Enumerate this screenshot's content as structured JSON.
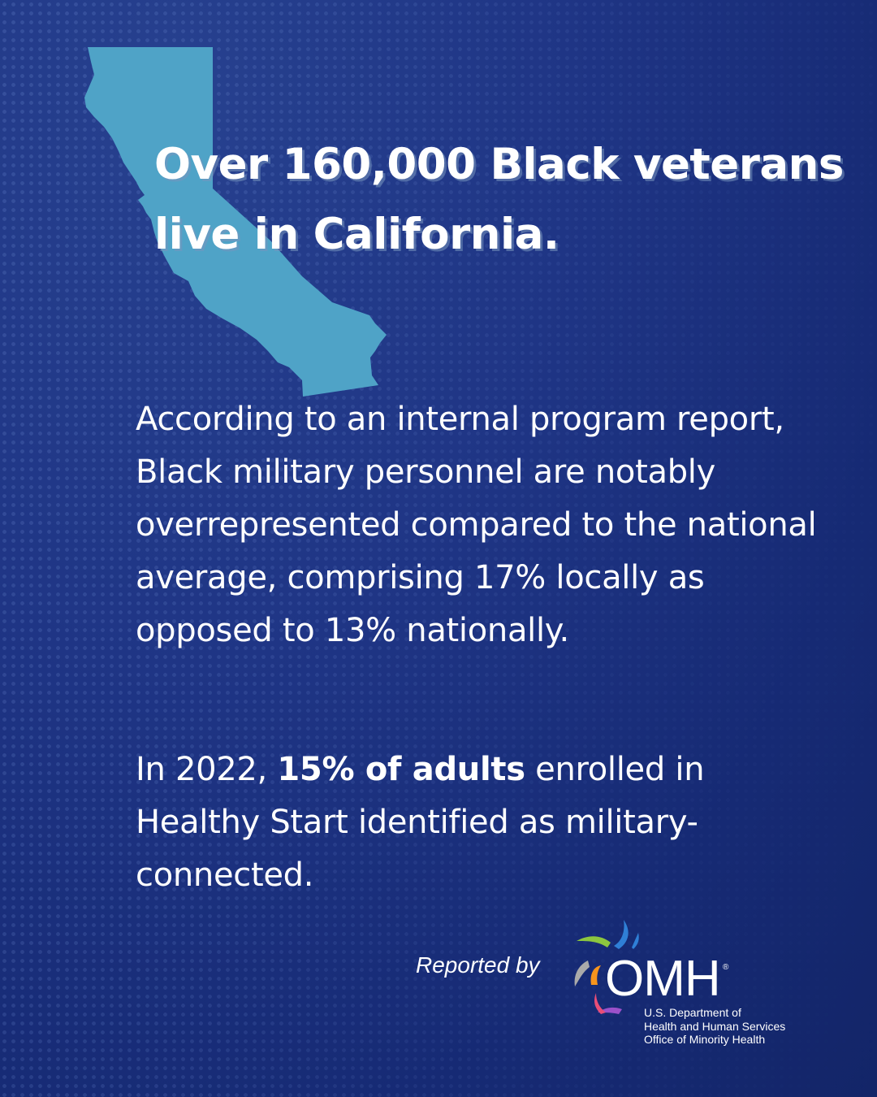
{
  "headline": "Over 160,000 Black veterans live in California.",
  "paragraph1": "According to an internal program report, Black military personnel are notably overrepresented compared to the national average, comprising 17% locally as opposed to 13% nationally.",
  "paragraph2": {
    "prefix": "In 2022, ",
    "bold": "15% of adults",
    "suffix": " enrolled in Healthy Start identified as military-connected."
  },
  "reported_by": "Reported by",
  "logo": {
    "name": "OMH",
    "registered": "®",
    "dept_line1": "U.S. Department of",
    "dept_line2": "Health and Human Services",
    "dept_line3": "Office of Minority Health"
  },
  "colors": {
    "background": "#1f3585",
    "state_fill": "#4fa3c7",
    "text": "#ffffff"
  },
  "icons": {
    "state": "california-state-silhouette",
    "logo": "omh-swirl-logo"
  }
}
